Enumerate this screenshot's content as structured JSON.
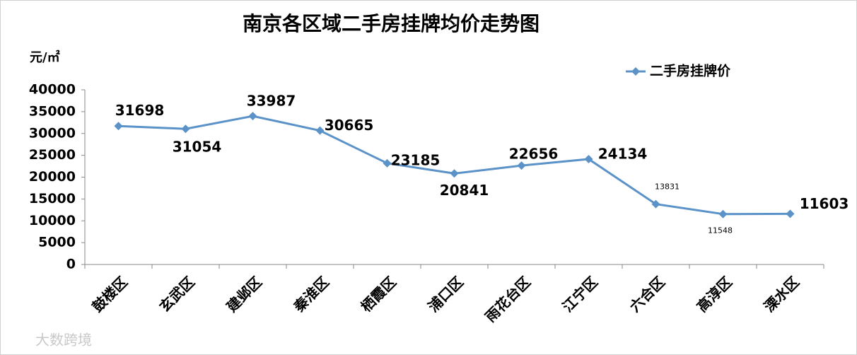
{
  "chart_data": {
    "type": "line",
    "title": "南京各区域二手房挂牌均价走势图",
    "y_label": "元/㎡",
    "categories": [
      "鼓楼区",
      "玄武区",
      "建邺区",
      "秦淮区",
      "栖霞区",
      "浦口区",
      "雨花台区",
      "江宁区",
      "六合区",
      "高淳区",
      "溧水区"
    ],
    "series": [
      {
        "name": "二手房挂牌价",
        "color": "#5b93c9",
        "values": [
          31698,
          31054,
          33987,
          30665,
          23185,
          20841,
          22656,
          24134,
          13831,
          11548,
          11603
        ]
      }
    ],
    "ylim": [
      0,
      40000
    ],
    "yticks": [
      0,
      5000,
      10000,
      15000,
      20000,
      25000,
      30000,
      35000,
      40000
    ],
    "legend": "top-right",
    "watermark": "大数跨境"
  }
}
